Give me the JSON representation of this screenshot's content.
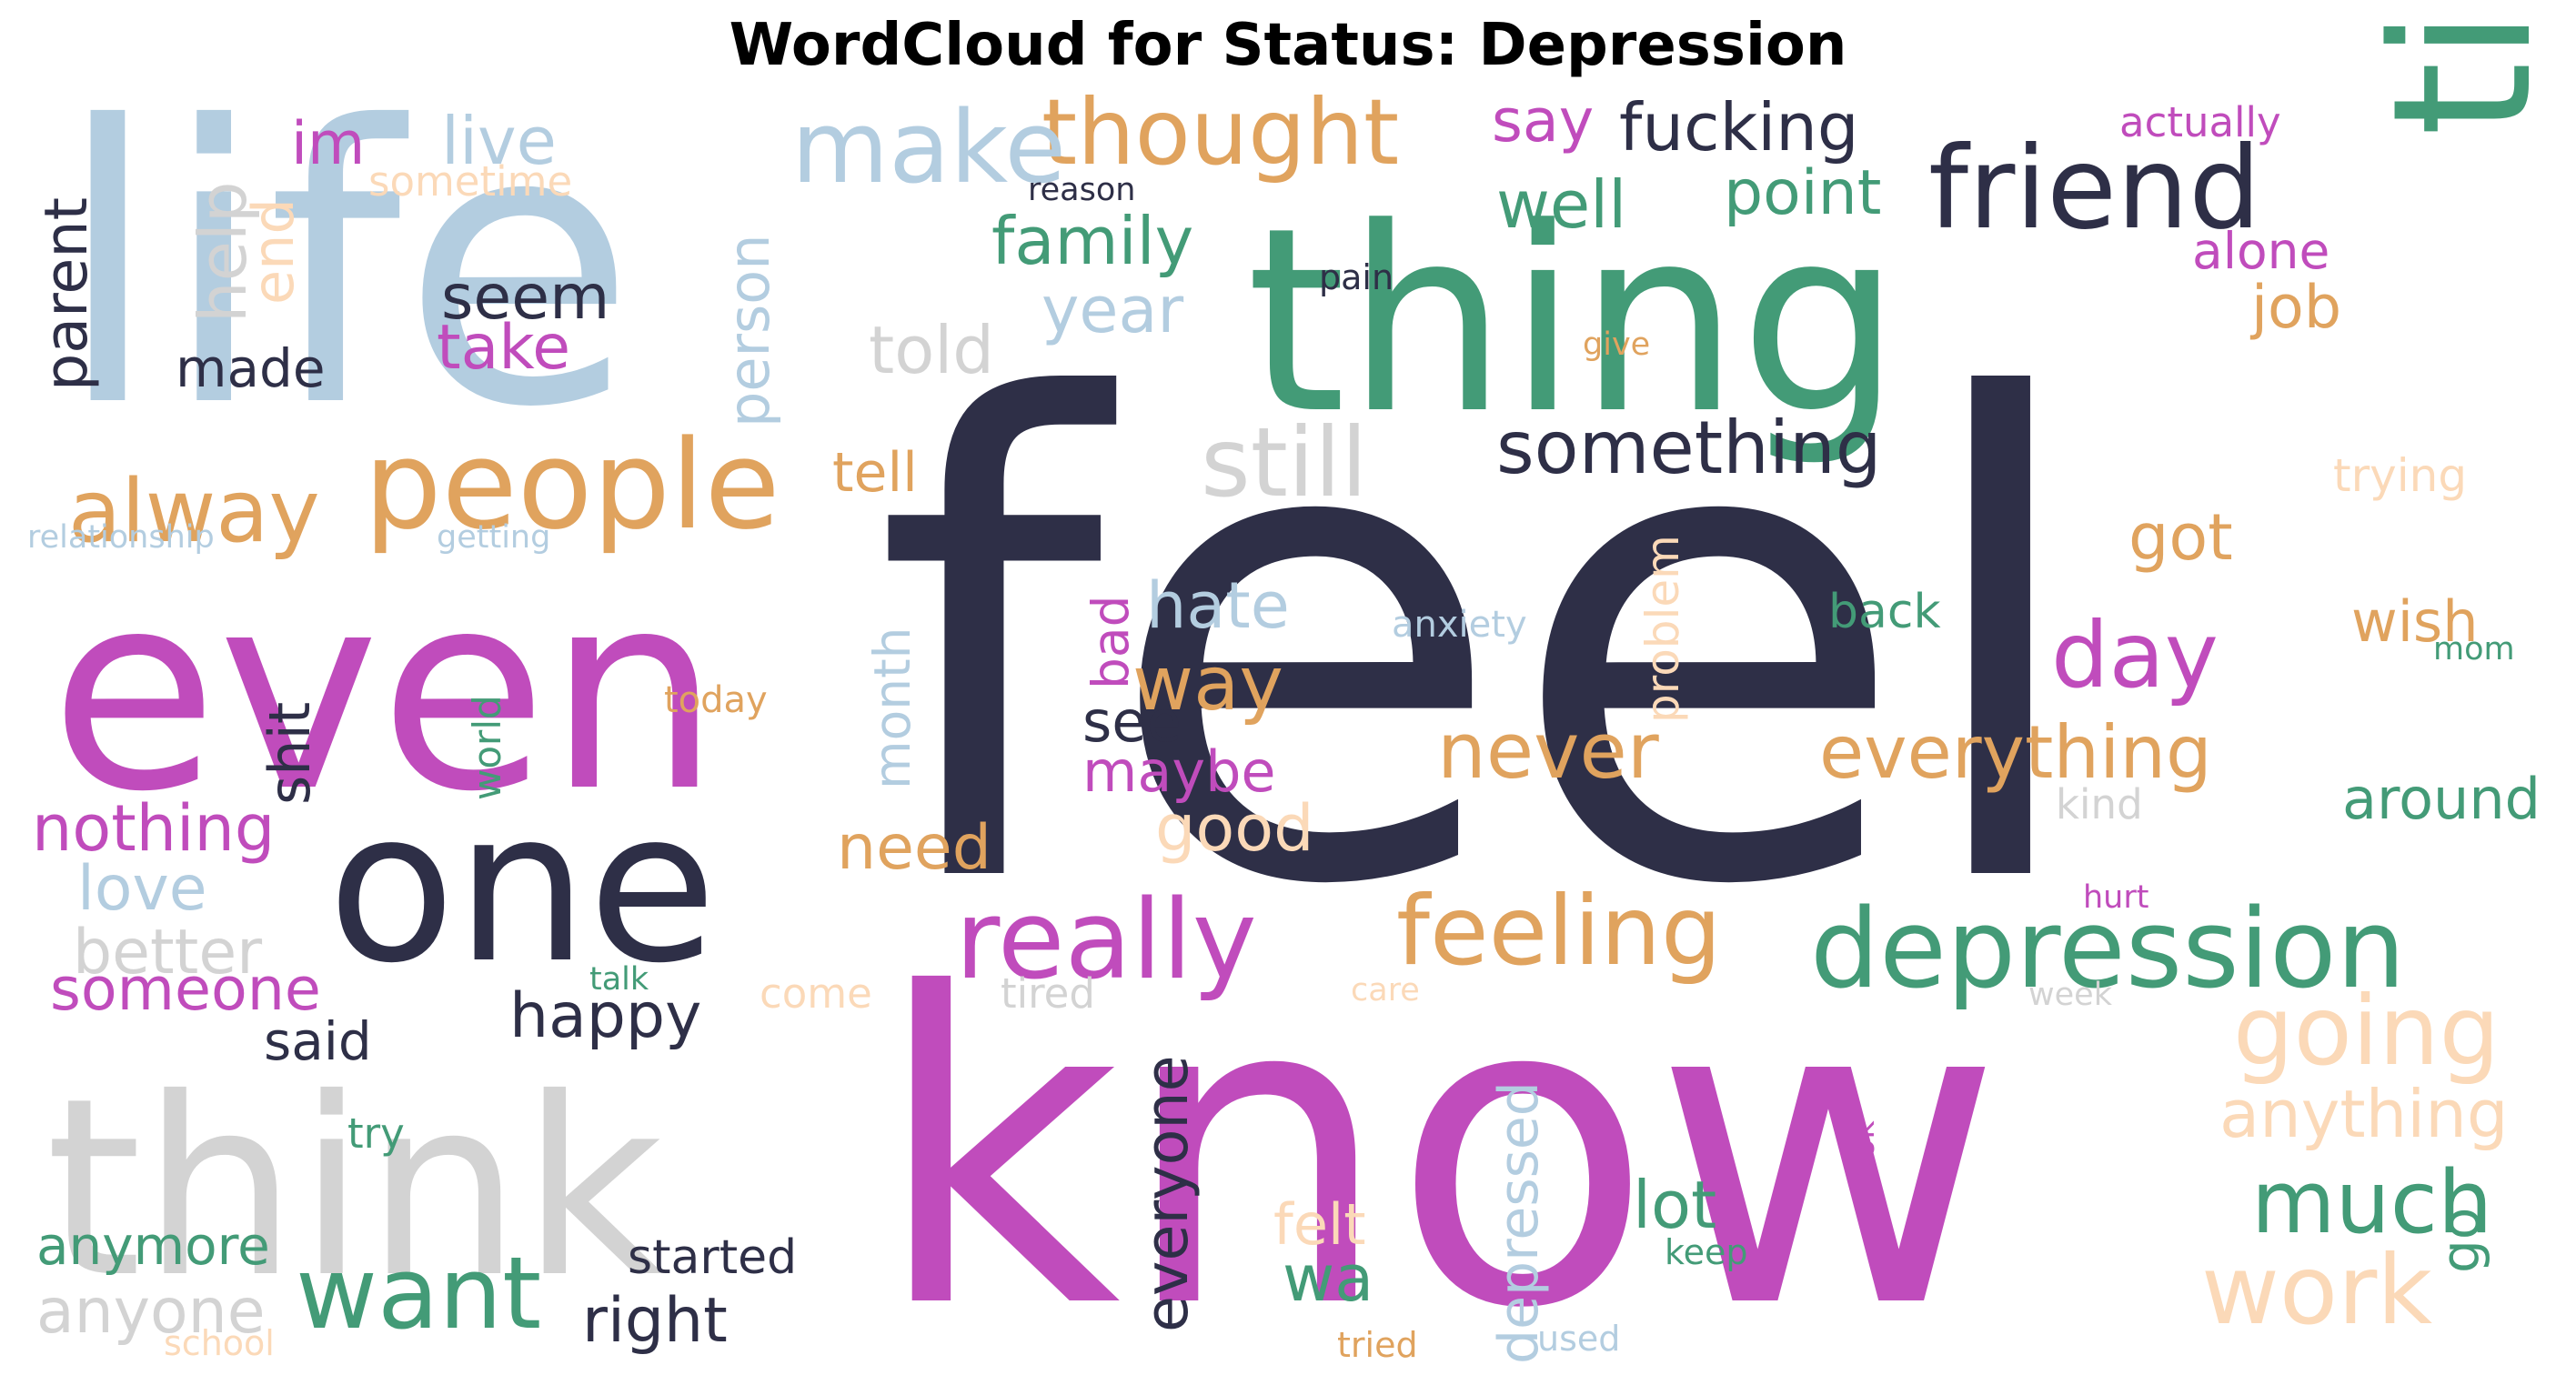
{
  "title": "WordCloud for Status: Depression",
  "palette": {
    "navy": "#2e2f47",
    "teal": "#439b77",
    "magenta": "#c04cbc",
    "blue": "#b3cde0",
    "orange": "#e0a35e",
    "peach": "#fbd9b8",
    "gray": "#d3d3d3"
  },
  "words": [
    {
      "text": "feel",
      "color": "navy"
    },
    {
      "text": "know",
      "color": "magenta"
    },
    {
      "text": "life",
      "color": "blue"
    },
    {
      "text": "even",
      "color": "magenta"
    },
    {
      "text": "thing",
      "color": "teal"
    },
    {
      "text": "time",
      "color": "teal"
    },
    {
      "text": "think",
      "color": "gray"
    },
    {
      "text": "one",
      "color": "navy"
    },
    {
      "text": "people",
      "color": "orange"
    },
    {
      "text": "friend",
      "color": "navy"
    },
    {
      "text": "thought",
      "color": "orange"
    },
    {
      "text": "make",
      "color": "blue"
    },
    {
      "text": "depression",
      "color": "teal"
    },
    {
      "text": "really",
      "color": "magenta"
    },
    {
      "text": "feeling",
      "color": "orange"
    },
    {
      "text": "work",
      "color": "peach"
    },
    {
      "text": "want",
      "color": "teal"
    },
    {
      "text": "going",
      "color": "peach"
    },
    {
      "text": "alway",
      "color": "orange"
    },
    {
      "text": "still",
      "color": "gray"
    },
    {
      "text": "something",
      "color": "navy"
    },
    {
      "text": "much",
      "color": "teal"
    },
    {
      "text": "day",
      "color": "magenta"
    },
    {
      "text": "never",
      "color": "orange"
    },
    {
      "text": "everything",
      "color": "orange"
    },
    {
      "text": "way",
      "color": "orange"
    },
    {
      "text": "fucking",
      "color": "navy"
    },
    {
      "text": "well",
      "color": "teal"
    },
    {
      "text": "point",
      "color": "teal"
    },
    {
      "text": "family",
      "color": "teal"
    },
    {
      "text": "year",
      "color": "blue"
    },
    {
      "text": "seem",
      "color": "navy"
    },
    {
      "text": "take",
      "color": "magenta"
    },
    {
      "text": "told",
      "color": "gray"
    },
    {
      "text": "help",
      "color": "gray"
    },
    {
      "text": "end",
      "color": "peach"
    },
    {
      "text": "parent",
      "color": "navy"
    },
    {
      "text": "made",
      "color": "navy"
    },
    {
      "text": "im",
      "color": "magenta"
    },
    {
      "text": "live",
      "color": "blue"
    },
    {
      "text": "sometime",
      "color": "peach"
    },
    {
      "text": "say",
      "color": "magenta"
    },
    {
      "text": "actually",
      "color": "magenta"
    },
    {
      "text": "reason",
      "color": "navy"
    },
    {
      "text": "pain",
      "color": "navy"
    },
    {
      "text": "give",
      "color": "orange"
    },
    {
      "text": "alone",
      "color": "magenta"
    },
    {
      "text": "job",
      "color": "orange"
    },
    {
      "text": "person",
      "color": "blue"
    },
    {
      "text": "tell",
      "color": "orange"
    },
    {
      "text": "relationship",
      "color": "blue"
    },
    {
      "text": "getting",
      "color": "blue"
    },
    {
      "text": "trying",
      "color": "peach"
    },
    {
      "text": "got",
      "color": "orange"
    },
    {
      "text": "hate",
      "color": "blue"
    },
    {
      "text": "problem",
      "color": "peach"
    },
    {
      "text": "back",
      "color": "teal"
    },
    {
      "text": "anxiety",
      "color": "blue"
    },
    {
      "text": "wish",
      "color": "orange"
    },
    {
      "text": "mom",
      "color": "teal"
    },
    {
      "text": "bad",
      "color": "magenta"
    },
    {
      "text": "see",
      "color": "navy"
    },
    {
      "text": "maybe",
      "color": "magenta"
    },
    {
      "text": "month",
      "color": "blue"
    },
    {
      "text": "shit",
      "color": "navy"
    },
    {
      "text": "world",
      "color": "teal"
    },
    {
      "text": "today",
      "color": "orange"
    },
    {
      "text": "kind",
      "color": "gray"
    },
    {
      "text": "around",
      "color": "teal"
    },
    {
      "text": "nothing",
      "color": "magenta"
    },
    {
      "text": "good",
      "color": "peach"
    },
    {
      "text": "need",
      "color": "orange"
    },
    {
      "text": "love",
      "color": "blue"
    },
    {
      "text": "better",
      "color": "gray"
    },
    {
      "text": "hurt",
      "color": "magenta"
    },
    {
      "text": "someone",
      "color": "magenta"
    },
    {
      "text": "happy",
      "color": "navy"
    },
    {
      "text": "said",
      "color": "navy"
    },
    {
      "text": "talk",
      "color": "teal"
    },
    {
      "text": "come",
      "color": "peach"
    },
    {
      "text": "tired",
      "color": "gray"
    },
    {
      "text": "care",
      "color": "peach"
    },
    {
      "text": "week",
      "color": "gray"
    },
    {
      "text": "anything",
      "color": "peach"
    },
    {
      "text": "everyone",
      "color": "navy"
    },
    {
      "text": "depressed",
      "color": "blue"
    },
    {
      "text": "try",
      "color": "teal"
    },
    {
      "text": "look",
      "color": "magenta"
    },
    {
      "text": "lot",
      "color": "teal"
    },
    {
      "text": "keep",
      "color": "teal"
    },
    {
      "text": "felt",
      "color": "peach"
    },
    {
      "text": "wa",
      "color": "teal"
    },
    {
      "text": "go",
      "color": "teal"
    },
    {
      "text": "anymore",
      "color": "teal"
    },
    {
      "text": "started",
      "color": "navy"
    },
    {
      "text": "anyone",
      "color": "gray"
    },
    {
      "text": "right",
      "color": "navy"
    },
    {
      "text": "school",
      "color": "peach"
    },
    {
      "text": "tried",
      "color": "orange"
    },
    {
      "text": "used",
      "color": "blue"
    }
  ]
}
